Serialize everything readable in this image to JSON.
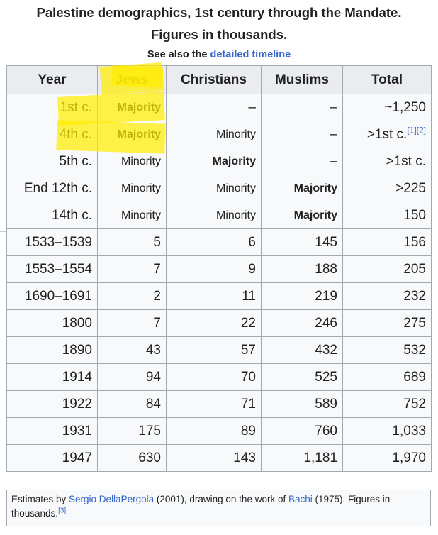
{
  "title_line1": "Palestine demographics, 1st century through the Mandate.",
  "title_line2": "Figures in thousands.",
  "see_also": {
    "prefix": "See also the ",
    "link": "detailed timeline"
  },
  "columns": [
    "Year",
    "Jews",
    "Christians",
    "Muslims",
    "Total"
  ],
  "rows": [
    {
      "year": "1st c.",
      "jews": "Majority",
      "christians": "–",
      "muslims": "–",
      "total": "~1,250"
    },
    {
      "year": "4th c.",
      "jews": "Majority",
      "christians": "Minority",
      "muslims": "–",
      "total": ">1st c.",
      "refs": [
        "[1]",
        "[2]"
      ]
    },
    {
      "year": "5th c.",
      "jews": "Minority",
      "christians": "Majority",
      "muslims": "–",
      "total": ">1st c."
    },
    {
      "year": "End 12th c.",
      "jews": "Minority",
      "christians": "Minority",
      "muslims": "Majority",
      "total": ">225"
    },
    {
      "year": "14th c.",
      "jews": "Minority",
      "christians": "Minority",
      "muslims": "Majority",
      "total": "150"
    },
    {
      "year": "1533–1539",
      "jews": "5",
      "christians": "6",
      "muslims": "145",
      "total": "156"
    },
    {
      "year": "1553–1554",
      "jews": "7",
      "christians": "9",
      "muslims": "188",
      "total": "205"
    },
    {
      "year": "1690–1691",
      "jews": "2",
      "christians": "11",
      "muslims": "219",
      "total": "232"
    },
    {
      "year": "1800",
      "jews": "7",
      "christians": "22",
      "muslims": "246",
      "total": "275"
    },
    {
      "year": "1890",
      "jews": "43",
      "christians": "57",
      "muslims": "432",
      "total": "532"
    },
    {
      "year": "1914",
      "jews": "94",
      "christians": "70",
      "muslims": "525",
      "total": "689"
    },
    {
      "year": "1922",
      "jews": "84",
      "christians": "71",
      "muslims": "589",
      "total": "752"
    },
    {
      "year": "1931",
      "jews": "175",
      "christians": "89",
      "muslims": "760",
      "total": "1,033"
    },
    {
      "year": "1947",
      "jews": "630",
      "christians": "143",
      "muslims": "1,181",
      "total": "1,970"
    }
  ],
  "caption": {
    "t1": "Estimates by ",
    "link1": "Sergio DellaPergola",
    "t2": " (2001), drawing on the work of ",
    "link2": "Bachi",
    "t3": " (1975). Figures in thousands.",
    "ref": "[3]"
  },
  "highlight_color": "#ffeb00"
}
